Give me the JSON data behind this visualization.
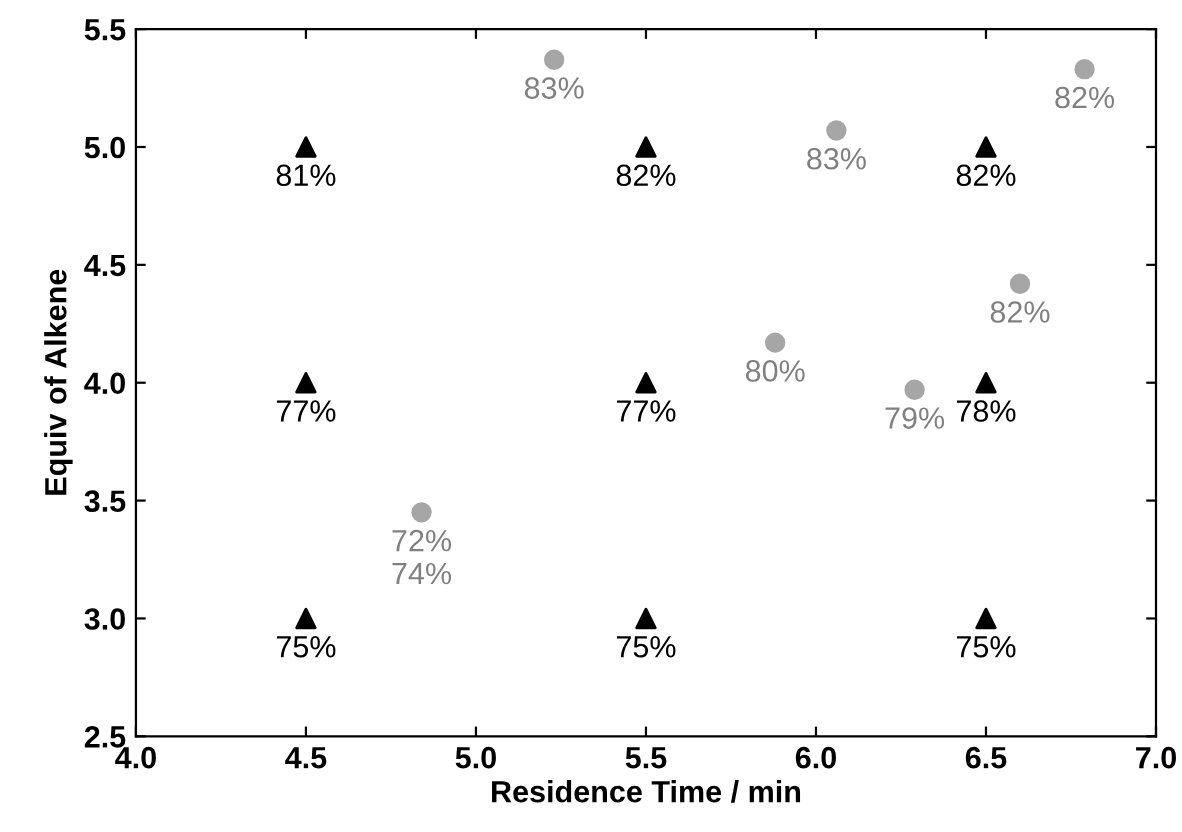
{
  "chart_data": {
    "type": "scatter",
    "xlabel": "Residence Time / min",
    "ylabel": "Equiv of Alkene",
    "xlim": [
      4.0,
      7.0
    ],
    "xticks": [
      {
        "value": 4.0,
        "label": "4.0"
      },
      {
        "value": 4.5,
        "label": "4.5"
      },
      {
        "value": 5.0,
        "label": "5.0"
      },
      {
        "value": 5.5,
        "label": "5.5"
      },
      {
        "value": 6.0,
        "label": "6.0"
      },
      {
        "value": 6.5,
        "label": "6.5"
      },
      {
        "value": 7.0,
        "label": "7.0"
      }
    ],
    "ylim": [
      2.5,
      5.5
    ],
    "yticks": [
      {
        "value": 2.5,
        "label": "2.5"
      },
      {
        "value": 3.0,
        "label": "3.0"
      },
      {
        "value": 3.5,
        "label": "3.5"
      },
      {
        "value": 4.0,
        "label": "4.0"
      },
      {
        "value": 4.5,
        "label": "4.5"
      },
      {
        "value": 5.0,
        "label": "5.0"
      },
      {
        "value": 5.5,
        "label": "5.5"
      }
    ],
    "grid": false,
    "series": [
      {
        "color": "#000000",
        "marker": "triangle",
        "x": [
          4.5,
          5.5,
          6.5,
          4.5,
          5.5,
          6.5,
          4.5,
          5.5,
          6.5
        ],
        "values": [
          5.0,
          5.0,
          5.0,
          4.0,
          4.0,
          4.0,
          3.0,
          3.0,
          3.0
        ]
      },
      {
        "color": "#a6a6a6",
        "marker": "circle",
        "x": [
          5.23,
          6.06,
          6.79,
          6.6,
          5.88,
          6.29,
          4.84
        ],
        "values": [
          5.37,
          5.07,
          5.33,
          4.42,
          4.17,
          3.97,
          3.45
        ]
      }
    ],
    "annotations": [
      {
        "text": "81%",
        "x": 4.5,
        "y": 5.0
      },
      {
        "text": "82%",
        "x": 5.5,
        "y": 5.0
      },
      {
        "text": "82%",
        "x": 6.5,
        "y": 5.0
      },
      {
        "text": "77%",
        "x": 4.5,
        "y": 4.0
      },
      {
        "text": "77%",
        "x": 5.5,
        "y": 4.0
      },
      {
        "text": "78%",
        "x": 6.5,
        "y": 4.0
      },
      {
        "text": "75%",
        "x": 4.5,
        "y": 3.0
      },
      {
        "text": "75%",
        "x": 5.5,
        "y": 3.0
      },
      {
        "text": "75%",
        "x": 6.5,
        "y": 3.0
      },
      {
        "text": "83%",
        "x": 5.23,
        "y": 5.37
      },
      {
        "text": "83%",
        "x": 6.06,
        "y": 5.07
      },
      {
        "text": "82%",
        "x": 6.79,
        "y": 5.33
      },
      {
        "text": "82%",
        "x": 6.6,
        "y": 4.42
      },
      {
        "text": "80%",
        "x": 5.88,
        "y": 4.17
      },
      {
        "text": "79%",
        "x": 6.29,
        "y": 3.97
      },
      {
        "text": "72%\n74%",
        "x": 4.84,
        "y": 3.45
      }
    ]
  }
}
